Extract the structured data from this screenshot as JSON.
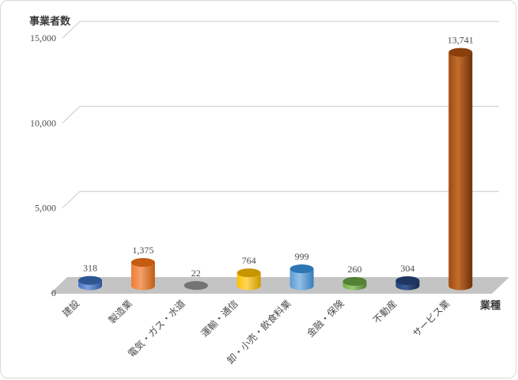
{
  "page": {
    "background": "#FFFFFF",
    "border_color": "#D9D9D9"
  },
  "chart_data": {
    "type": "bar",
    "subtype": "3d-cylinder",
    "title": "",
    "ylabel": "事業者数",
    "xlabel": "業種",
    "categories": [
      "建設",
      "製造業",
      "電気・ガス・水道",
      "運輸・通信",
      "卸・小売・飲食料業",
      "金融・保険",
      "不動産",
      "サービス業"
    ],
    "values": [
      318,
      1375,
      22,
      764,
      999,
      260,
      304,
      13741
    ],
    "value_labels": [
      "318",
      "1,375",
      "22",
      "764",
      "999",
      "260",
      "304",
      "13,741"
    ],
    "ylim": [
      0,
      15000
    ],
    "yticks": [
      0,
      5000,
      10000,
      15000
    ],
    "ytick_labels": [
      "0",
      "5,000",
      "10,000",
      "15,000"
    ],
    "grid": true,
    "legend": false,
    "gridline_color": "#D6D6D6",
    "floor_color": "#C4C4C4",
    "text_color": "#4A4A4A",
    "series_colors": [
      {
        "name": "blue",
        "body": "#4472C4",
        "light": "#7DA1DC",
        "dark": "#2F5597",
        "top": "#2E5693"
      },
      {
        "name": "orange",
        "body": "#ED7D31",
        "light": "#F4A06A",
        "dark": "#BF5E12",
        "top": "#C55A11"
      },
      {
        "name": "gray",
        "body": "#A5A5A5",
        "light": "#C3C3C3",
        "dark": "#7F7F7F",
        "top": "#747474"
      },
      {
        "name": "gold",
        "body": "#FFC000",
        "light": "#FFD65C",
        "dark": "#CC9900",
        "top": "#C69500"
      },
      {
        "name": "light-blue",
        "body": "#5B9BD5",
        "light": "#93BFE6",
        "dark": "#3A7CBE",
        "top": "#2E75B6"
      },
      {
        "name": "green",
        "body": "#70AD47",
        "light": "#9ACA79",
        "dark": "#4F7A33",
        "top": "#538135"
      },
      {
        "name": "navy",
        "body": "#264478",
        "light": "#3B5C96",
        "dark": "#17294A",
        "top": "#1E3760"
      },
      {
        "name": "brown",
        "body": "#A0490F",
        "light": "#C26E2D",
        "dark": "#6E3108",
        "top": "#8B3F0C"
      }
    ]
  }
}
